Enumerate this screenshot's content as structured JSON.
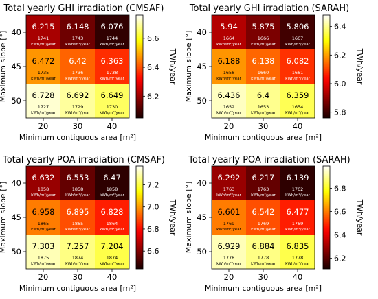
{
  "chart_data": [
    {
      "type": "heatmap",
      "title": "Total yearly GHI irradiation (CMSAF)",
      "xlabel": "Minimum contiguous area [m²]",
      "ylabel": "Maximum slope [°]",
      "x_categories": [
        "20",
        "30",
        "40"
      ],
      "y_categories": [
        "40",
        "45",
        "50"
      ],
      "values": [
        [
          6.215,
          6.148,
          6.076
        ],
        [
          6.472,
          6.42,
          6.363
        ],
        [
          6.728,
          6.692,
          6.649
        ]
      ],
      "cell_labels": [
        [
          "6.215",
          "6.148",
          "6.076"
        ],
        [
          "6.472",
          "6.42",
          "6.363"
        ],
        [
          "6.728",
          "6.692",
          "6.649"
        ]
      ],
      "sub_labels": [
        [
          "1741",
          "1743",
          "1744"
        ],
        [
          "1735",
          "1736",
          "1738"
        ],
        [
          "1727",
          "1729",
          "1730"
        ]
      ],
      "sub_unit": "kWh/m²/year",
      "colorbar": {
        "label": "TWh/year",
        "min": 6.05,
        "max": 6.76,
        "ticks": [
          "6.2",
          "6.4",
          "6.6"
        ],
        "tick_values": [
          6.2,
          6.4,
          6.6
        ],
        "colormap": "hot"
      }
    },
    {
      "type": "heatmap",
      "title": "Total yearly GHI irradiation (SARAH)",
      "xlabel": "Minimum contiguous area [m²]",
      "ylabel": "Maximum slope [°]",
      "x_categories": [
        "20",
        "30",
        "40"
      ],
      "y_categories": [
        "40",
        "45",
        "50"
      ],
      "values": [
        [
          5.94,
          5.875,
          5.806
        ],
        [
          6.188,
          6.138,
          6.082
        ],
        [
          6.436,
          6.4,
          6.359
        ]
      ],
      "cell_labels": [
        [
          "5.94",
          "5.875",
          "5.806"
        ],
        [
          "6.188",
          "6.138",
          "6.082"
        ],
        [
          "6.436",
          "6.4",
          "6.359"
        ]
      ],
      "sub_labels": [
        [
          "1664",
          "1666",
          "1667"
        ],
        [
          "1658",
          "1660",
          "1661"
        ],
        [
          "1652",
          "1653",
          "1654"
        ]
      ],
      "sub_unit": "kWh/m²/year",
      "colorbar": {
        "label": "TWh/year",
        "min": 5.76,
        "max": 6.48,
        "ticks": [
          "5.8",
          "6.0",
          "6.2",
          "6.4"
        ],
        "tick_values": [
          5.8,
          6.0,
          6.2,
          6.4
        ],
        "colormap": "hot"
      }
    },
    {
      "type": "heatmap",
      "title": "Total yearly POA irradiation (CMSAF)",
      "xlabel": "Minimum contiguous area [m²]",
      "ylabel": "Maximum slope [°]",
      "x_categories": [
        "20",
        "30",
        "40"
      ],
      "y_categories": [
        "40",
        "45",
        "50"
      ],
      "values": [
        [
          6.632,
          6.553,
          6.47
        ],
        [
          6.958,
          6.895,
          6.828
        ],
        [
          7.303,
          7.257,
          7.204
        ]
      ],
      "cell_labels": [
        [
          "6.632",
          "6.553",
          "6.47"
        ],
        [
          "6.958",
          "6.895",
          "6.828"
        ],
        [
          "7.303",
          "7.257",
          "7.204"
        ]
      ],
      "sub_labels": [
        [
          "1858",
          "1858",
          "1858"
        ],
        [
          "1865",
          "1865",
          "1864"
        ],
        [
          "1875",
          "1874",
          "1874"
        ]
      ],
      "sub_unit": "kWh/m²/year",
      "colorbar": {
        "label": "TWh/year",
        "min": 6.44,
        "max": 7.37,
        "ticks": [
          "6.6",
          "6.8",
          "7.0",
          "7.2"
        ],
        "tick_values": [
          6.6,
          6.8,
          7.0,
          7.2
        ],
        "colormap": "hot"
      }
    },
    {
      "type": "heatmap",
      "title": "Total yearly POA irradiation (SARAH)",
      "xlabel": "Minimum contiguous area [m²]",
      "ylabel": "Maximum slope [°]",
      "x_categories": [
        "20",
        "30",
        "40"
      ],
      "y_categories": [
        "40",
        "45",
        "50"
      ],
      "values": [
        [
          6.292,
          6.217,
          6.139
        ],
        [
          6.601,
          6.542,
          6.477
        ],
        [
          6.929,
          6.884,
          6.835
        ]
      ],
      "cell_labels": [
        [
          "6.292",
          "6.217",
          "6.139"
        ],
        [
          "6.601",
          "6.542",
          "6.477"
        ],
        [
          "6.929",
          "6.884",
          "6.835"
        ]
      ],
      "sub_labels": [
        [
          "1763",
          "1763",
          "1762"
        ],
        [
          "1769",
          "1769",
          "1769"
        ],
        [
          "1778",
          "1778",
          "1778"
        ]
      ],
      "sub_unit": "kWh/m²/year",
      "colorbar": {
        "label": "TWh/year",
        "min": 6.11,
        "max": 6.99,
        "ticks": [
          "6.2",
          "6.4",
          "6.6",
          "6.8"
        ],
        "tick_values": [
          6.2,
          6.4,
          6.6,
          6.8
        ],
        "colormap": "hot"
      }
    }
  ]
}
